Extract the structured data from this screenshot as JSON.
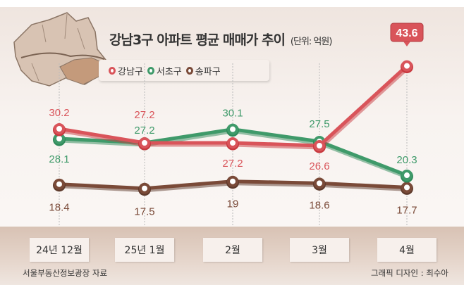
{
  "chart_data": {
    "type": "line",
    "title": "강남3구 아파트 평균 매매가 추이",
    "unit": "(단위: 억원)",
    "categories": [
      "24년 12월",
      "25년 1월",
      "2월",
      "3월",
      "4월"
    ],
    "series": [
      {
        "name": "강남구",
        "color": "#d9545a",
        "values": [
          30.2,
          27.2,
          27.2,
          26.6,
          43.6
        ]
      },
      {
        "name": "서초구",
        "color": "#3f9a6a",
        "values": [
          28.1,
          27.2,
          30.1,
          27.5,
          20.3
        ]
      },
      {
        "name": "송파구",
        "color": "#7a4a38",
        "values": [
          18.4,
          17.5,
          19,
          18.6,
          17.7
        ]
      }
    ],
    "legend_position": "top-left",
    "source": "서울부동산정보광장 자료",
    "credit": "그래픽 디자인 : 최수아"
  }
}
